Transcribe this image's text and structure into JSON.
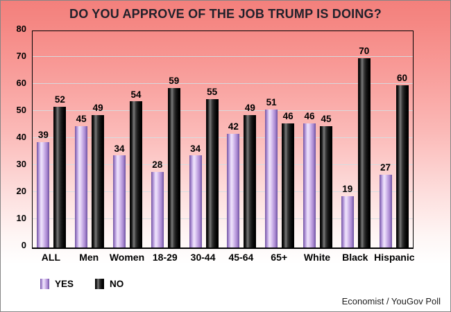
{
  "title": "DO YOU APPROVE OF THE JOB TRUMP IS DOING?",
  "footer": "Economist / YouGov Poll",
  "colors": {
    "yes_bar": "#c9a6e4",
    "no_bar": "#1a1a1a",
    "background_top": "#f3807c",
    "background_bottom": "#ffffff",
    "gridline": "#d6dce0",
    "text": "#000000"
  },
  "chart_data": {
    "type": "bar",
    "title": "DO YOU APPROVE OF THE JOB TRUMP IS DOING?",
    "categories": [
      "ALL",
      "Men",
      "Women",
      "18-29",
      "30-44",
      "45-64",
      "65+",
      "White",
      "Black",
      "Hispanic"
    ],
    "series": [
      {
        "name": "YES",
        "color": "#c9a6e4",
        "values": [
          39,
          45,
          34,
          28,
          34,
          42,
          51,
          46,
          19,
          27
        ]
      },
      {
        "name": "NO",
        "color": "#1a1a1a",
        "values": [
          52,
          49,
          54,
          59,
          55,
          49,
          46,
          45,
          70,
          60
        ]
      }
    ],
    "xlabel": "",
    "ylabel": "",
    "ylim": [
      0,
      80
    ],
    "yticks": [
      0,
      10,
      20,
      30,
      40,
      50,
      60,
      70,
      80
    ],
    "grid": "horizontal",
    "legend_position": "bottom-left",
    "value_labels": true,
    "source": "Economist / YouGov Poll"
  }
}
